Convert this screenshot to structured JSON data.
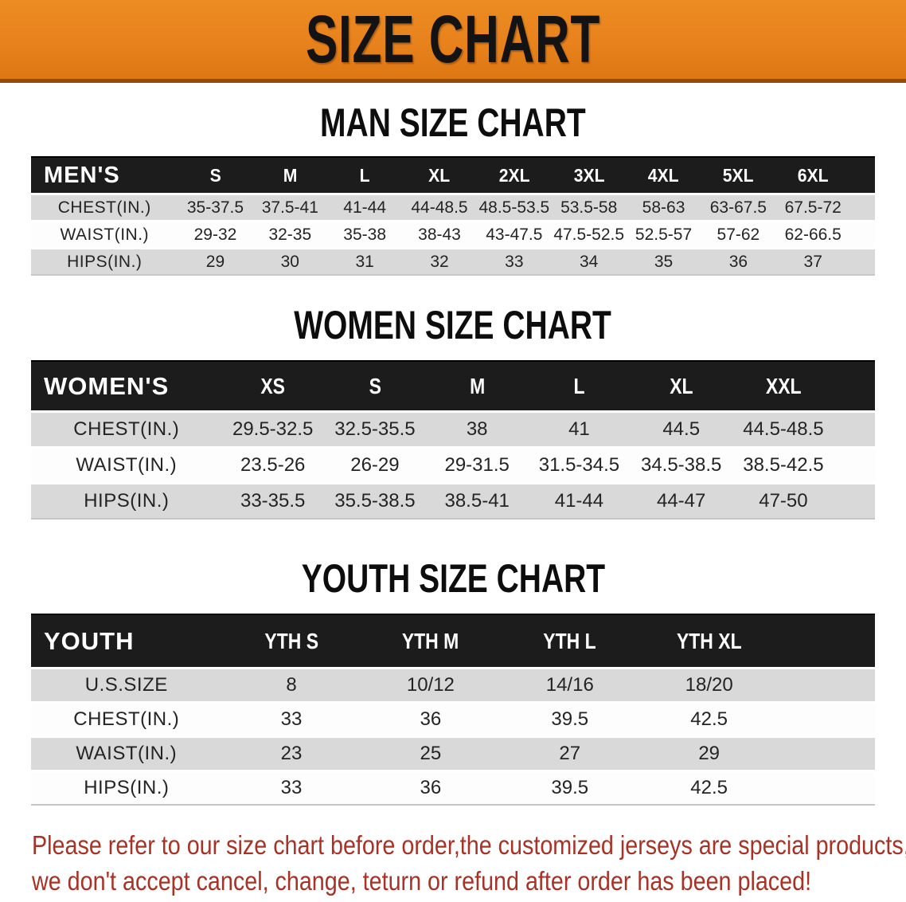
{
  "banner": {
    "title": "SIZE CHART",
    "bg_color": "#e8821c",
    "text_color": "#131313"
  },
  "sections": [
    {
      "id": "men",
      "title": "MAN SIZE CHART",
      "header_label": "MEN'S",
      "columns": [
        "S",
        "M",
        "L",
        "XL",
        "2XL",
        "3XL",
        "4XL",
        "5XL",
        "6XL"
      ],
      "rows": [
        {
          "label": "CHEST(IN.)",
          "values": [
            "35-37.5",
            "37.5-41",
            "41-44",
            "44-48.5",
            "48.5-53.5",
            "53.5-58",
            "58-63",
            "63-67.5",
            "67.5-72"
          ]
        },
        {
          "label": "WAIST(IN.)",
          "values": [
            "29-32",
            "32-35",
            "35-38",
            "38-43",
            "43-47.5",
            "47.5-52.5",
            "52.5-57",
            "57-62",
            "62-66.5"
          ]
        },
        {
          "label": "HIPS(IN.)",
          "values": [
            "29",
            "30",
            "31",
            "32",
            "33",
            "34",
            "35",
            "36",
            "37"
          ]
        }
      ]
    },
    {
      "id": "women",
      "title": "WOMEN SIZE CHART",
      "header_label": "WOMEN'S",
      "columns": [
        "XS",
        "S",
        "M",
        "L",
        "XL",
        "XXL"
      ],
      "rows": [
        {
          "label": "CHEST(IN.)",
          "values": [
            "29.5-32.5",
            "32.5-35.5",
            "38",
            "41",
            "44.5",
            "44.5-48.5"
          ]
        },
        {
          "label": "WAIST(IN.)",
          "values": [
            "23.5-26",
            "26-29",
            "29-31.5",
            "31.5-34.5",
            "34.5-38.5",
            "38.5-42.5"
          ]
        },
        {
          "label": "HIPS(IN.)",
          "values": [
            "33-35.5",
            "35.5-38.5",
            "38.5-41",
            "41-44",
            "44-47",
            "47-50"
          ]
        }
      ]
    },
    {
      "id": "youth",
      "title": "YOUTH SIZE CHART",
      "header_label": "YOUTH",
      "columns": [
        "YTH S",
        "YTH M",
        "YTH L",
        "YTH XL"
      ],
      "rows": [
        {
          "label": "U.S.SIZE",
          "values": [
            "8",
            "10/12",
            "14/16",
            "18/20"
          ]
        },
        {
          "label": "CHEST(IN.)",
          "values": [
            "33",
            "36",
            "39.5",
            "42.5"
          ]
        },
        {
          "label": "WAIST(IN.)",
          "values": [
            "23",
            "25",
            "27",
            "29"
          ]
        },
        {
          "label": "HIPS(IN.)",
          "values": [
            "33",
            "36",
            "39.5",
            "42.5"
          ]
        }
      ]
    }
  ],
  "footer": {
    "line1": "Please refer to our size chart before order,the customized jerseys are special products,",
    "line2": "we don't accept cancel, change, teturn or refund after order has been placed!",
    "text_color": "#a93226"
  }
}
